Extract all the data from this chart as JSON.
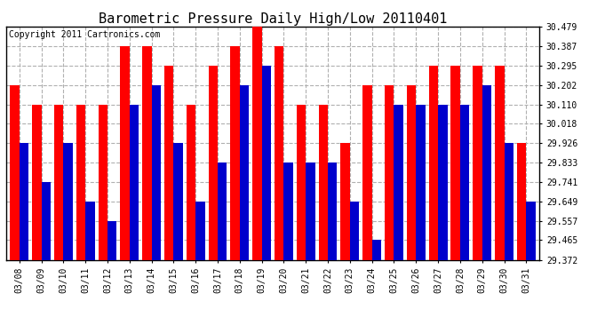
{
  "title": "Barometric Pressure Daily High/Low 20110401",
  "copyright": "Copyright 2011 Cartronics.com",
  "dates": [
    "03/08",
    "03/09",
    "03/10",
    "03/11",
    "03/12",
    "03/13",
    "03/14",
    "03/15",
    "03/16",
    "03/17",
    "03/18",
    "03/19",
    "03/20",
    "03/21",
    "03/22",
    "03/23",
    "03/24",
    "03/25",
    "03/26",
    "03/27",
    "03/28",
    "03/29",
    "03/30",
    "03/31"
  ],
  "highs": [
    30.202,
    30.11,
    30.11,
    30.11,
    30.11,
    30.387,
    30.387,
    30.295,
    30.11,
    30.295,
    30.387,
    30.479,
    30.387,
    30.11,
    30.11,
    29.926,
    30.202,
    30.202,
    30.202,
    30.295,
    30.295,
    30.295,
    30.295,
    29.926
  ],
  "lows": [
    29.926,
    29.741,
    29.926,
    29.649,
    29.557,
    30.11,
    30.202,
    29.926,
    29.649,
    29.833,
    30.202,
    30.295,
    29.833,
    29.833,
    29.833,
    29.649,
    29.465,
    30.11,
    30.11,
    30.11,
    30.11,
    30.202,
    29.926,
    29.649
  ],
  "ymin": 29.372,
  "ymax": 30.479,
  "yticks": [
    29.372,
    29.465,
    29.557,
    29.649,
    29.741,
    29.833,
    29.926,
    30.018,
    30.11,
    30.202,
    30.295,
    30.387,
    30.479
  ],
  "bar_width": 0.42,
  "high_color": "#ff0000",
  "low_color": "#0000cc",
  "bg_color": "#ffffff",
  "grid_color": "#b0b0b0",
  "title_fontsize": 11,
  "copyright_fontsize": 7,
  "tick_fontsize": 7,
  "xlabel_fontsize": 7
}
